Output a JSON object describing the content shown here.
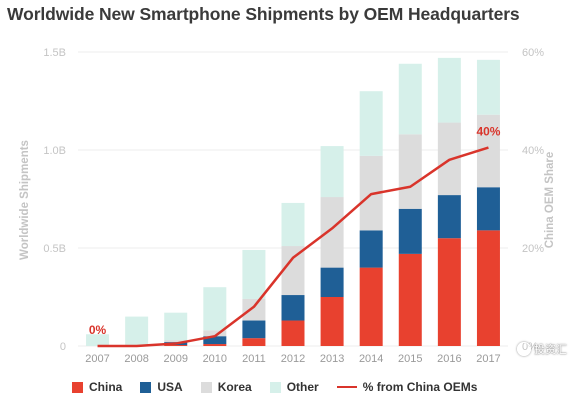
{
  "chart_data": {
    "type": "bar",
    "title": "Worldwide New Smartphone Shipments by OEM Headquarters",
    "ylabel": "Worldwide Shipments",
    "y2label": "China OEM Share",
    "categories": [
      "2007",
      "2008",
      "2009",
      "2010",
      "2011",
      "2012",
      "2013",
      "2014",
      "2015",
      "2016",
      "2017"
    ],
    "ylim": [
      0,
      1.5
    ],
    "y_ticks": [
      "0",
      "0.5B",
      "1.0B",
      "1.5B"
    ],
    "y2lim": [
      0,
      60
    ],
    "y2_ticks": [
      "0%",
      "20%",
      "40%",
      "60%"
    ],
    "stacked": true,
    "series": [
      {
        "name": "China",
        "color": "#e8412f",
        "values": [
          0.0,
          0.0,
          0.005,
          0.01,
          0.04,
          0.13,
          0.25,
          0.4,
          0.47,
          0.55,
          0.59
        ]
      },
      {
        "name": "USA",
        "color": "#1f5f96",
        "values": [
          0.0,
          0.0,
          0.015,
          0.04,
          0.09,
          0.13,
          0.15,
          0.19,
          0.23,
          0.22,
          0.22
        ]
      },
      {
        "name": "Korea",
        "color": "#dcdcdc",
        "values": [
          0.0,
          0.0,
          0.01,
          0.03,
          0.11,
          0.25,
          0.36,
          0.38,
          0.38,
          0.37,
          0.37
        ]
      },
      {
        "name": "Other",
        "color": "#d6f0ea",
        "values": [
          0.06,
          0.15,
          0.14,
          0.22,
          0.25,
          0.22,
          0.26,
          0.33,
          0.36,
          0.33,
          0.28
        ]
      }
    ],
    "line_series": {
      "name": "% from China OEMs",
      "color": "#d9342b",
      "axis": "right",
      "values": [
        0,
        0,
        0.5,
        2,
        8,
        18,
        24,
        31,
        32.5,
        38,
        40.5
      ]
    },
    "annotations": [
      {
        "text": "0%",
        "category": "2007"
      },
      {
        "text": "40%",
        "category": "2017"
      }
    ],
    "legend_position": "bottom",
    "grid": true
  },
  "watermark_text": "投资汇"
}
